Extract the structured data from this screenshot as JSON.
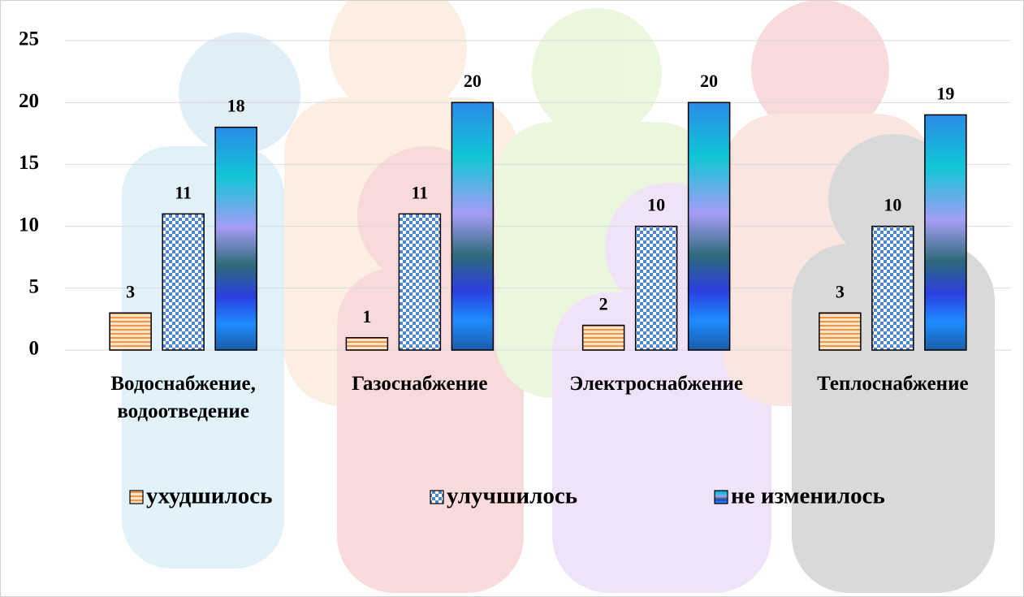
{
  "chart_data": {
    "type": "bar",
    "categories": [
      "Водоснабжение, водоотведение",
      "Газоснабжение",
      "Электроснабжение",
      "Теплоснабжение"
    ],
    "series": [
      {
        "name": "ухудшилось",
        "color": "#f0964a",
        "pattern": "stripes",
        "values": [
          3,
          1,
          2,
          3
        ]
      },
      {
        "name": "улучшилось",
        "color": "#4f86d2",
        "pattern": "checker",
        "values": [
          11,
          11,
          10,
          10
        ]
      },
      {
        "name": "не изменилось",
        "color": "#1f8fe6",
        "pattern": "gradient",
        "values": [
          18,
          20,
          20,
          19
        ]
      }
    ],
    "ylim": [
      0,
      25
    ],
    "yticks": [
      0,
      5,
      10,
      15,
      20,
      25
    ],
    "grid": true,
    "legend": "bottom"
  }
}
